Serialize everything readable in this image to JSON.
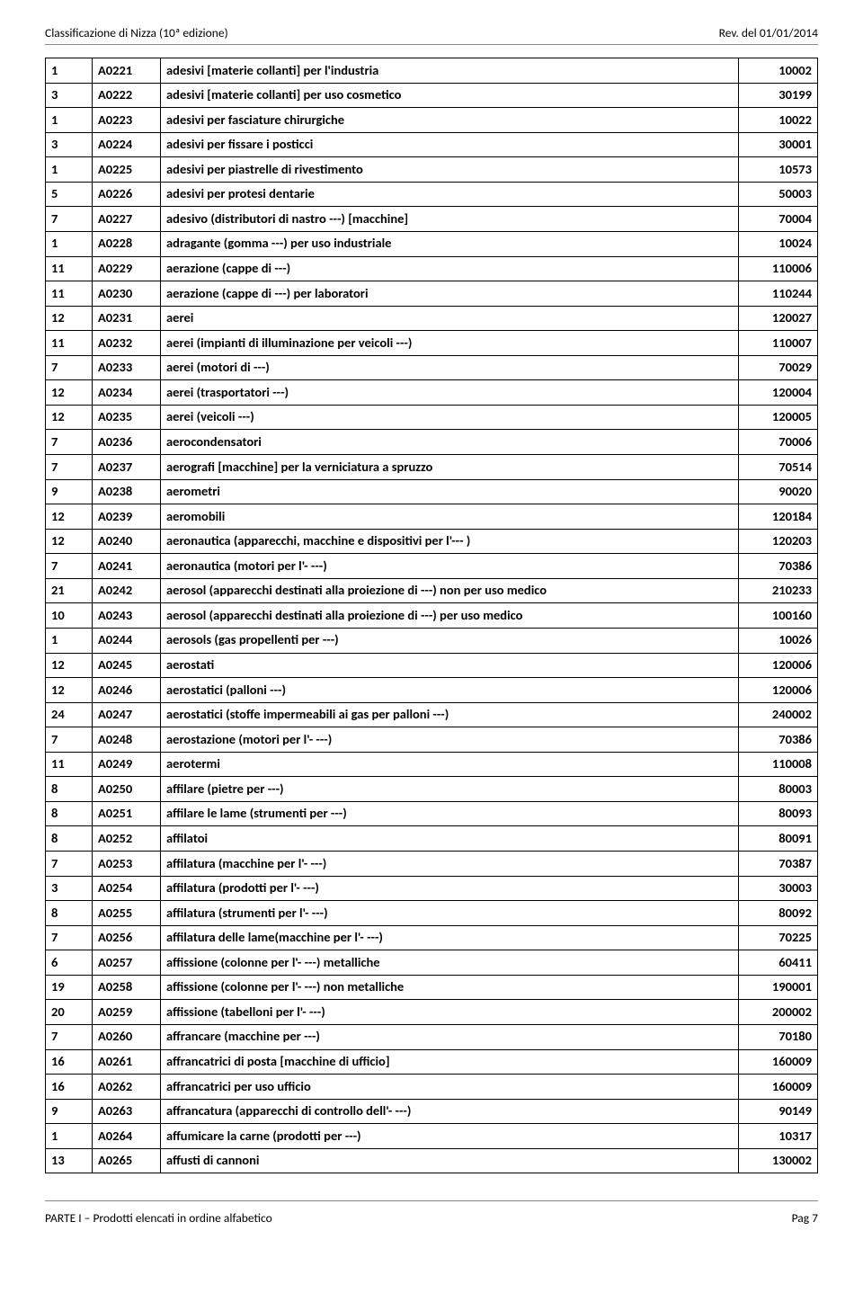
{
  "header": {
    "left": "Classificazione di Nizza (10ª edizione)",
    "right": "Rev. del 01/01/2014"
  },
  "footer": {
    "left": "PARTE I – Prodotti elencati in ordine alfabetico",
    "right": "Pag  7"
  },
  "columns": [
    "class_no",
    "ref",
    "description",
    "code"
  ],
  "rows": [
    [
      "1",
      "A0221",
      "adesivi [materie collanti] per l'industria",
      "10002"
    ],
    [
      "3",
      "A0222",
      "adesivi [materie collanti] per uso cosmetico",
      "30199"
    ],
    [
      "1",
      "A0223",
      "adesivi per fasciature chirurgiche",
      "10022"
    ],
    [
      "3",
      "A0224",
      "adesivi per fissare i posticci",
      "30001"
    ],
    [
      "1",
      "A0225",
      "adesivi per piastrelle di rivestimento",
      "10573"
    ],
    [
      "5",
      "A0226",
      "adesivi per protesi dentarie",
      "50003"
    ],
    [
      "7",
      "A0227",
      "adesivo (distributori di nastro ---) [macchine]",
      "70004"
    ],
    [
      "1",
      "A0228",
      "adragante (gomma ---) per uso industriale",
      "10024"
    ],
    [
      "11",
      "A0229",
      "aerazione (cappe di ---)",
      "110006"
    ],
    [
      "11",
      "A0230",
      "aerazione (cappe di ---) per laboratori",
      "110244"
    ],
    [
      "12",
      "A0231",
      "aerei",
      "120027"
    ],
    [
      "11",
      "A0232",
      "aerei (impianti di illuminazione per veicoli ---)",
      "110007"
    ],
    [
      "7",
      "A0233",
      "aerei (motori di ---)",
      "70029"
    ],
    [
      "12",
      "A0234",
      "aerei (trasportatori ---)",
      "120004"
    ],
    [
      "12",
      "A0235",
      "aerei (veicoli ---)",
      "120005"
    ],
    [
      "7",
      "A0236",
      "aerocondensatori",
      "70006"
    ],
    [
      "7",
      "A0237",
      "aerografi [macchine] per la verniciatura a spruzzo",
      "70514"
    ],
    [
      "9",
      "A0238",
      "aerometri",
      "90020"
    ],
    [
      "12",
      "A0239",
      "aeromobili",
      "120184"
    ],
    [
      "12",
      "A0240",
      "aeronautica (apparecchi, macchine e dispositivi per l'--- )",
      "120203"
    ],
    [
      "7",
      "A0241",
      "aeronautica (motori per l'- ---)",
      "70386"
    ],
    [
      "21",
      "A0242",
      "aerosol (apparecchi destinati alla proiezione di ---) non per uso medico",
      "210233"
    ],
    [
      "10",
      "A0243",
      "aerosol (apparecchi destinati alla proiezione di ---) per uso medico",
      "100160"
    ],
    [
      "1",
      "A0244",
      "aerosols (gas propellenti per ---)",
      "10026"
    ],
    [
      "12",
      "A0245",
      "aerostati",
      "120006"
    ],
    [
      "12",
      "A0246",
      "aerostatici (palloni ---)",
      "120006"
    ],
    [
      "24",
      "A0247",
      "aerostatici (stoffe impermeabili ai gas per palloni ---)",
      "240002"
    ],
    [
      "7",
      "A0248",
      "aerostazione (motori per l'- ---)",
      "70386"
    ],
    [
      "11",
      "A0249",
      "aerotermi",
      "110008"
    ],
    [
      "8",
      "A0250",
      "affilare (pietre per ---)",
      "80003"
    ],
    [
      "8",
      "A0251",
      "affilare le lame (strumenti per ---)",
      "80093"
    ],
    [
      "8",
      "A0252",
      "affilatoi",
      "80091"
    ],
    [
      "7",
      "A0253",
      "affilatura (macchine per l'- ---)",
      "70387"
    ],
    [
      "3",
      "A0254",
      "affilatura (prodotti per l'- ---)",
      "30003"
    ],
    [
      "8",
      "A0255",
      "affilatura (strumenti per l'- ---)",
      "80092"
    ],
    [
      "7",
      "A0256",
      "affilatura delle lame(macchine per l'- ---)",
      "70225"
    ],
    [
      "6",
      "A0257",
      "affissione (colonne per l'- ---) metalliche",
      "60411"
    ],
    [
      "19",
      "A0258",
      "affissione (colonne per l'- ---) non metalliche",
      "190001"
    ],
    [
      "20",
      "A0259",
      "affissione (tabelloni per l'- ---)",
      "200002"
    ],
    [
      "7",
      "A0260",
      "affrancare (macchine per ---)",
      "70180"
    ],
    [
      "16",
      "A0261",
      "affrancatrici di posta [macchine di ufficio]",
      "160009"
    ],
    [
      "16",
      "A0262",
      "affrancatrici per uso ufficio",
      "160009"
    ],
    [
      "9",
      "A0263",
      "affrancatura (apparecchi di controllo dell'- ---)",
      "90149"
    ],
    [
      "1",
      "A0264",
      "affumicare la carne (prodotti per ---)",
      "10317"
    ],
    [
      "13",
      "A0265",
      "affusti di cannoni",
      "130002"
    ]
  ]
}
